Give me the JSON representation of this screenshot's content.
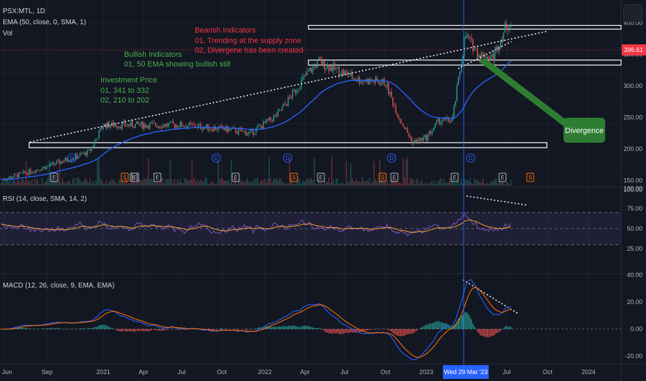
{
  "header": {
    "symbol_line": "PSX:MTL, 1D",
    "ema_line": "EMA (50, close, 0, SMA, 1)",
    "vol_line": "Vol",
    "rsi_line": "RSI (14, close, SMA, 14, 2)",
    "macd_line": "MACD (12, 26, close, 9, EMA, EMA)"
  },
  "annotations": {
    "bearish_title": "Bearish Indicators",
    "bearish_1": "01, Trending at the supply zone",
    "bearish_2": "02, Divergene has been created",
    "bullish_title": "Bullish Indicators",
    "bullish_1": "01, 50 EMA showing bullish still",
    "investment_title": "Investment Price",
    "investment_1": "01,     341 to 332",
    "investment_2": "02,     210  to 202",
    "divergence": "Divergence"
  },
  "colors": {
    "background": "#131722",
    "bullish_text": "#4caf50",
    "bearish_text": "#f23645",
    "ema": "#2962ff",
    "rsi": "#7e57c2",
    "rsi_ma": "#f5a623",
    "macd": "#2962ff",
    "signal": "#ff6d00",
    "divergence_box": "#2e7d32",
    "cursor_line": "#2962ff",
    "price_badge": "#f23645"
  },
  "chart_data": {
    "type": "candlestick",
    "x_ticks": [
      "Jun",
      "Sep",
      "2021",
      "Apr",
      "Jul",
      "Oct",
      "2022",
      "Apr",
      "Jul",
      "Oct",
      "2023",
      "Wed 29 Mar '23",
      "Jul",
      "Oct",
      "2024"
    ],
    "price_axis": {
      "ticks": [
        "400.00",
        "350.00",
        "300.00",
        "250.00",
        "200.00",
        "150.00",
        "100.00"
      ],
      "range": [
        130,
        430
      ]
    },
    "last_price": "396.61",
    "close_approx": [
      {
        "x": "Jun 2020",
        "y": 152
      },
      {
        "x": "Sep 2020",
        "y": 172
      },
      {
        "x": "Dec 2020",
        "y": 195
      },
      {
        "x": "Jan 2021",
        "y": 238
      },
      {
        "x": "Apr 2021",
        "y": 238
      },
      {
        "x": "Jul 2021",
        "y": 238
      },
      {
        "x": "Oct 2021",
        "y": 232
      },
      {
        "x": "Dec 2021",
        "y": 225
      },
      {
        "x": "Feb 2022",
        "y": 255
      },
      {
        "x": "Apr 2022",
        "y": 315
      },
      {
        "x": "May 2022",
        "y": 338
      },
      {
        "x": "Jul 2022",
        "y": 320
      },
      {
        "x": "Aug 2022",
        "y": 310
      },
      {
        "x": "Oct 2022",
        "y": 305
      },
      {
        "x": "Nov 2022",
        "y": 250
      },
      {
        "x": "Dec 2022",
        "y": 210
      },
      {
        "x": "Jan 2023",
        "y": 218
      },
      {
        "x": "Feb 2023",
        "y": 245
      },
      {
        "x": "Mar 2023",
        "y": 245
      },
      {
        "x": "Apr 2023",
        "y": 380
      },
      {
        "x": "May 2023",
        "y": 350
      },
      {
        "x": "Jun 2023",
        "y": 345
      },
      {
        "x": "Jul 2023",
        "y": 397
      }
    ],
    "zones": [
      {
        "name": "supply",
        "low": 390,
        "high": 396
      },
      {
        "name": "mid",
        "low": 333,
        "high": 341
      },
      {
        "name": "demand",
        "low": 202,
        "high": 210
      }
    ],
    "event_markers": [
      "E",
      "D",
      "E",
      "S",
      "E",
      "E",
      "D",
      "E",
      "S",
      "D",
      "E",
      "S",
      "D",
      "E",
      "E",
      "D",
      "E",
      "S",
      "E"
    ],
    "rsi": {
      "ticks": [
        "100.00",
        "75.00",
        "50.00",
        "25.00"
      ],
      "range": [
        0,
        100
      ],
      "band": [
        30,
        70
      ]
    },
    "macd": {
      "ticks": [
        "40.00",
        "20.00",
        "0.00",
        "-20.00"
      ],
      "range": [
        -25,
        42
      ]
    }
  }
}
